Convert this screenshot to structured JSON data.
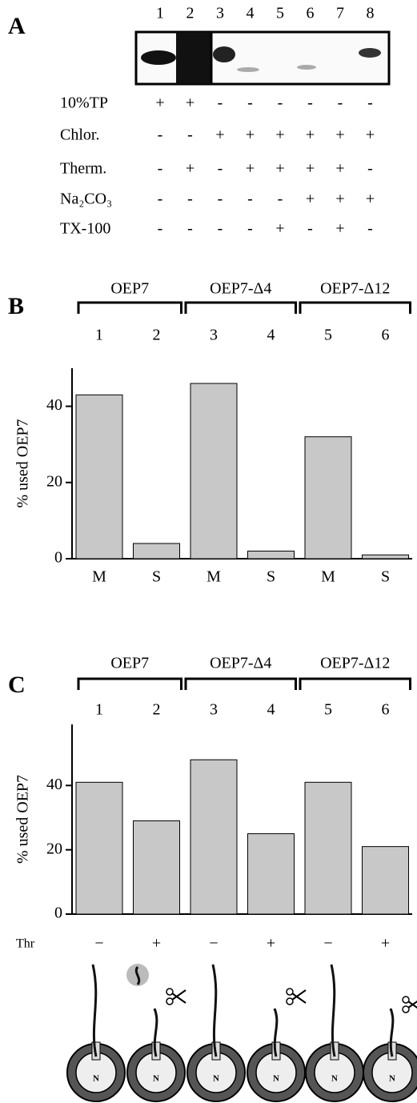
{
  "panel_a": {
    "label": "A",
    "lanes": [
      "1",
      "2",
      "3",
      "4",
      "5",
      "6",
      "7",
      "8"
    ],
    "rows": [
      {
        "label": "10%TP",
        "marks": [
          "+",
          "+",
          "-",
          "-",
          "-",
          "-",
          "-",
          "-"
        ]
      },
      {
        "label": "Chlor.",
        "marks": [
          "-",
          "-",
          "+",
          "+",
          "+",
          "+",
          "+",
          "+"
        ]
      },
      {
        "label": "Therm.",
        "marks": [
          "-",
          "+",
          "-",
          "+",
          "+",
          "+",
          "+",
          "-"
        ]
      },
      {
        "label": "Na₂CO₃",
        "marks": [
          "-",
          "-",
          "-",
          "-",
          "-",
          "+",
          "+",
          "+"
        ]
      },
      {
        "label": "TX-100",
        "marks": [
          "-",
          "-",
          "-",
          "-",
          "+",
          "-",
          "+",
          "-"
        ]
      }
    ]
  },
  "chart_data": [
    {
      "type": "bar",
      "panel": "B",
      "ylabel": "% used OEP7",
      "groups": [
        "OEP7",
        "OEP7-Δ4",
        "OEP7-Δ12"
      ],
      "column_labels": [
        "1",
        "2",
        "3",
        "4",
        "5",
        "6"
      ],
      "categories": [
        "M",
        "S",
        "M",
        "S",
        "M",
        "S"
      ],
      "values": [
        43,
        4,
        46,
        2,
        32,
        1
      ],
      "color": "#c8c8c8",
      "ylim": [
        0,
        50
      ],
      "yticks": [
        0,
        20,
        40
      ]
    },
    {
      "type": "bar",
      "panel": "C",
      "ylabel": "% used OEP7",
      "groups": [
        "OEP7",
        "OEP7-Δ4",
        "OEP7-Δ12"
      ],
      "column_labels": [
        "1",
        "2",
        "3",
        "4",
        "5",
        "6"
      ],
      "row_label": "Thr",
      "categories": [
        "−",
        "+",
        "−",
        "+",
        "−",
        "+"
      ],
      "values": [
        41,
        29,
        48,
        25,
        41,
        21
      ],
      "color": "#c8c8c8",
      "ylim": [
        0,
        59
      ],
      "yticks": [
        0,
        20,
        40
      ],
      "diagram_label": "N"
    }
  ]
}
